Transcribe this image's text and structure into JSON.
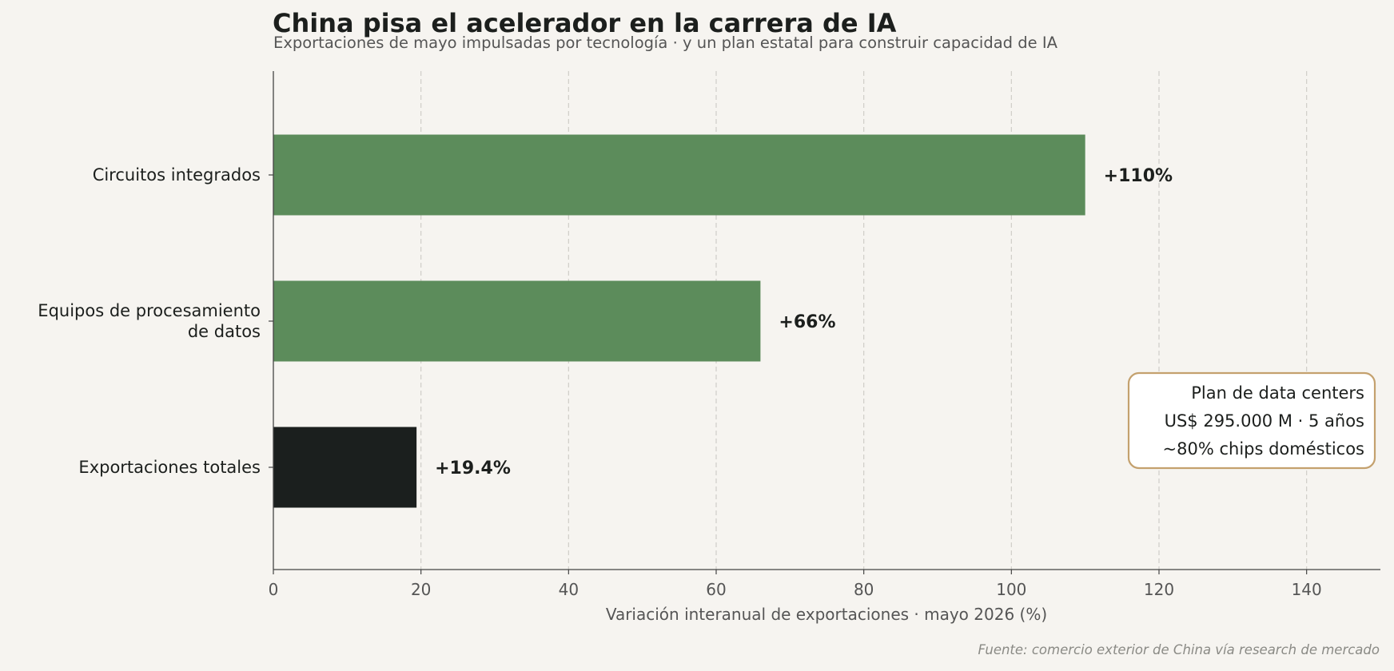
{
  "header": {
    "title": "China pisa el acelerador en la carrera de IA",
    "subtitle": "Exportaciones de mayo impulsadas por tecnología · y un plan estatal para construir capacidad de IA"
  },
  "footer": {
    "source": "Fuente: comercio exterior de China vía research de mercado"
  },
  "chart_data": {
    "type": "bar",
    "orientation": "horizontal",
    "categories": [
      "Circuitos integrados",
      "Equipos de procesamiento\nde datos",
      "Exportaciones totales"
    ],
    "values": [
      110,
      66,
      19.4
    ],
    "data_labels": [
      "+110%",
      "+66%",
      "+19.4%"
    ],
    "bar_colors": [
      "#5c8c5b",
      "#5c8c5b",
      "#1b1f1e"
    ],
    "xlabel": "Variación interanual de exportaciones · mayo 2026 (%)",
    "ylabel": "",
    "xlim": [
      0,
      150
    ],
    "xticks": [
      0,
      20,
      40,
      60,
      80,
      100,
      120,
      140
    ],
    "grid": "vertical dashed",
    "annotation": {
      "lines": [
        "Plan de data centers",
        "US$ 295.000 M · 5 años",
        "~80% chips domésticos"
      ],
      "border_color": "#c4a16e"
    }
  }
}
